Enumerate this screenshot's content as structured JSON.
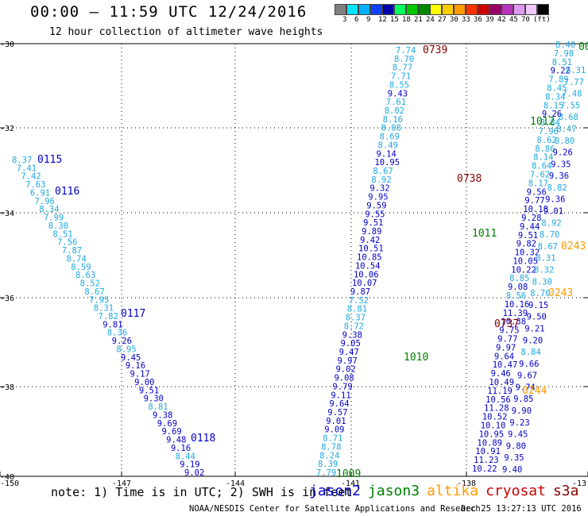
{
  "header": {
    "title": "00:00 – 11:59 UTC 12/24/2016",
    "subtitle": "12 hour collection of altimeter wave heights"
  },
  "color_scale": {
    "colors": [
      "#808080",
      "#00e5ff",
      "#00b0ff",
      "#1040ff",
      "#0000aa",
      "#00ff60",
      "#00c800",
      "#008800",
      "#ffff00",
      "#ffcc00",
      "#ff9900",
      "#ff3300",
      "#cc0000",
      "#990066",
      "#bb33bb",
      "#dd99ee",
      "#f0c8ff",
      "#000000"
    ],
    "labels": [
      "3",
      "6",
      "9",
      "12",
      "15",
      "18",
      "21",
      "24",
      "27",
      "30",
      "33",
      "36",
      "39",
      "42",
      "45",
      "70",
      "(ft)"
    ]
  },
  "axes": {
    "x_ticks": [
      "-150",
      "-147",
      "-144",
      "-141",
      "-138",
      "-13"
    ],
    "y_ticks": [
      "-30",
      "-32",
      "-34",
      "-36",
      "-38",
      "-40"
    ]
  },
  "satellite_colors": {
    "jason2": "#0000c8",
    "jason3": "#008000",
    "altika": "#ff9900",
    "cryosat": "#cc0000",
    "s3a": "#880000",
    "light": "#1ea8e0"
  },
  "tracks": {
    "track_a": [
      "8.37",
      "7.41",
      "7.42",
      "7.63",
      "6.91",
      "7.96",
      "8.34",
      "7.99",
      "8.30",
      "8.51",
      "7.56",
      "7.87",
      "8.74",
      "8.59",
      "8.63",
      "8.52",
      "8.67",
      "7.95",
      "8.31",
      "7.82",
      "9.81",
      "8.36",
      "9.26",
      "8.95",
      "9.45",
      "9.16",
      "9.17",
      "9.00",
      "9.51",
      "9.30",
      "8.81",
      "9.38",
      "9.69",
      "9.69",
      "9.48",
      "9.16",
      "8.44",
      "9.19",
      "9.02"
    ],
    "track_b": [
      "7.74",
      "8.70",
      "8.77",
      "7.71",
      "8.55",
      "9.43",
      "7.61",
      "8.02",
      "8.16",
      "8.08",
      "8.69",
      "8.49",
      "9.14",
      "10.95",
      "8.67",
      "8.92",
      "9.32",
      "9.95",
      "9.59",
      "9.55",
      "9.51",
      "9.89",
      "9.42",
      "10.51",
      "10.85",
      "10.54",
      "10.06",
      "10.07",
      "9.87",
      "7.52",
      "8.81",
      "8.37",
      "8.72",
      "9.38",
      "9.05",
      "9.47",
      "9.97",
      "9.02",
      "9.08",
      "9.79",
      "9.11",
      "9.64",
      "9.57",
      "9.01",
      "9.09",
      "8.71",
      "8.78",
      "8.24",
      "8.39",
      "7.79"
    ],
    "track_c": [
      "8.40",
      "7.98",
      "8.51",
      "9.22",
      "7.89",
      "8.45",
      "8.34",
      "8.15",
      "9.26",
      "8.84",
      "7.96",
      "8.62",
      "8.86",
      "8.14",
      "8.64",
      "7.62",
      "8.17",
      "9.56",
      "9.77",
      "10.18",
      "9.28",
      "9.44",
      "9.51",
      "9.82",
      "10.32",
      "10.05",
      "10.22",
      "8.85",
      "9.08",
      "8.56",
      "10.16",
      "11.39",
      "10.38",
      "9.75",
      "9.77",
      "9.97",
      "9.64",
      "10.47",
      "9.46",
      "10.49",
      "11.19",
      "10.56",
      "11.28",
      "10.52",
      "10.10",
      "10.95",
      "10.89",
      "10.91",
      "11.23",
      "10.22"
    ],
    "track_d": [
      "8.31",
      "7.77",
      "7.48",
      "7.55",
      "8.68",
      "8.47",
      "8.80",
      "9.26",
      "9.35",
      "9.36",
      "8.82",
      "9.36",
      "9.01",
      "8.92",
      "8.70",
      "8.67",
      "8.31",
      "8.32",
      "8.30",
      "8.70",
      "9.15",
      "9.50",
      "9.21",
      "9.20",
      "8.84",
      "9.66",
      "9.67",
      "9.74",
      "9.85",
      "9.90",
      "9.23",
      "9.45",
      "9.80",
      "9.35",
      "9.40"
    ]
  },
  "time_labels": [
    {
      "text": "0115",
      "sat": "jason2"
    },
    {
      "text": "0116",
      "sat": "jason2"
    },
    {
      "text": "0117",
      "sat": "jason2"
    },
    {
      "text": "0118",
      "sat": "jason2"
    },
    {
      "text": "0739",
      "sat": "s3a"
    },
    {
      "text": "0738",
      "sat": "s3a"
    },
    {
      "text": "0737",
      "sat": "s3a"
    },
    {
      "text": "1012",
      "sat": "jason3"
    },
    {
      "text": "1011",
      "sat": "jason3"
    },
    {
      "text": "1010",
      "sat": "jason3"
    },
    {
      "text": "1009",
      "sat": "jason3"
    },
    {
      "text": "0243",
      "sat": "altika"
    },
    {
      "text": "0243",
      "sat": "altika"
    },
    {
      "text": "0244",
      "sat": "altika"
    },
    {
      "text": "00",
      "sat": "jason3"
    }
  ],
  "footer": {
    "note": "note: 1) Time is in UTC; 2) SWH is in feet",
    "satellites": [
      "jason2",
      "jason3",
      "altika",
      "cryosat",
      "s3a"
    ],
    "credit": "NOAA/NESDIS Center for Satellite Applications and Research",
    "timestamp": "Dec 25 13:27:13 UTC 2016"
  }
}
